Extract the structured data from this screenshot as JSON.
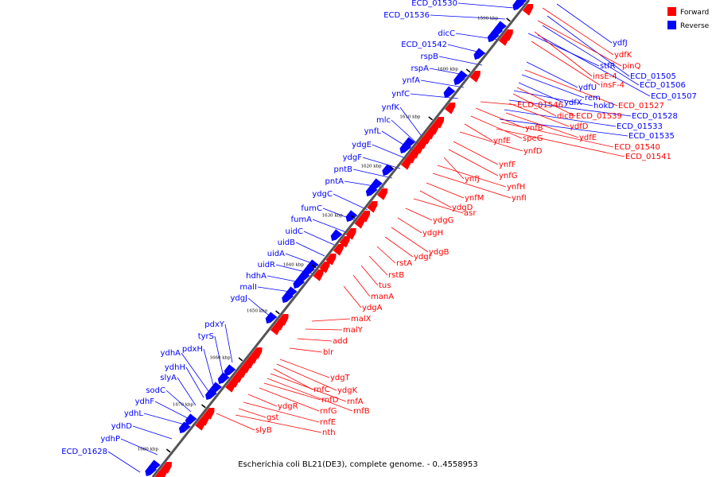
{
  "caption": "Escherichia coli BL21(DE3), complete genome. - 0..4558953",
  "legend": [
    {
      "label": "Forward",
      "color": "#ff0000"
    },
    {
      "label": "Reverse",
      "color": "#0000ff"
    }
  ],
  "colors": {
    "forward": "#ff0000",
    "reverse": "#0000ff",
    "backbone": "#555555"
  },
  "ticks": [
    "1590 kbp",
    "1600 kbp",
    "1610 kbp",
    "1620 kbp",
    "1630 kbp",
    "1640 kbp",
    "1650 kbp",
    "1660 kbp",
    "1670 kbp",
    "1680 kbp"
  ],
  "reverse_genes": [
    "ECD_01530",
    "ECD_01536",
    "dicC",
    "ECD_01542",
    "rspB",
    "rspA",
    "ynfA",
    "ynfC",
    "ynfK",
    "mlc",
    "ynfL",
    "ydgE",
    "ydgF",
    "pntB",
    "pntA",
    "ydgC",
    "fumC",
    "fumA",
    "uidC",
    "uidB",
    "uidA",
    "uidR",
    "hdhA",
    "malI",
    "ydgJ",
    "pdxY",
    "tyrS",
    "pdxH",
    "ydhA",
    "ydhH",
    "slyA",
    "sodC",
    "ydhF",
    "ydhL",
    "ydhD",
    "ydhP",
    "ECD_01628"
  ],
  "reverse_genes_right": [
    "ydfJ",
    "stfR",
    "ECD_01505",
    "ECD_01506",
    "ECD_01507",
    "ydfU",
    "rem",
    "ydfX",
    "hokD",
    "ECD_01528",
    "ECD_01533",
    "ECD_01535"
  ],
  "forward_genes_right": [
    "ydfK",
    "pinQ",
    "insE-4",
    "insF-4",
    "ECD_01527",
    "ECD_01539",
    "dicB",
    "ydfD",
    "ydfE",
    "ECD_01540",
    "ECD_01541",
    "ECD_01546",
    "ynfB",
    "speG",
    "ynfE",
    "ynfD",
    "ynfF",
    "ynfG",
    "ynfJ",
    "ynfH",
    "ynfI",
    "ynfM",
    "ydgD",
    "asr",
    "ydgG",
    "ydgH",
    "ydgB",
    "ydgI",
    "rstA",
    "rstB",
    "tus",
    "manA",
    "ydgA",
    "malX",
    "malY",
    "add",
    "blr",
    "ydgT",
    "ydgK",
    "rnfC",
    "rnfA",
    "rnfB",
    "rnfD",
    "rnfG",
    "ydgR",
    "rnfE",
    "gst",
    "nth",
    "slyB"
  ]
}
